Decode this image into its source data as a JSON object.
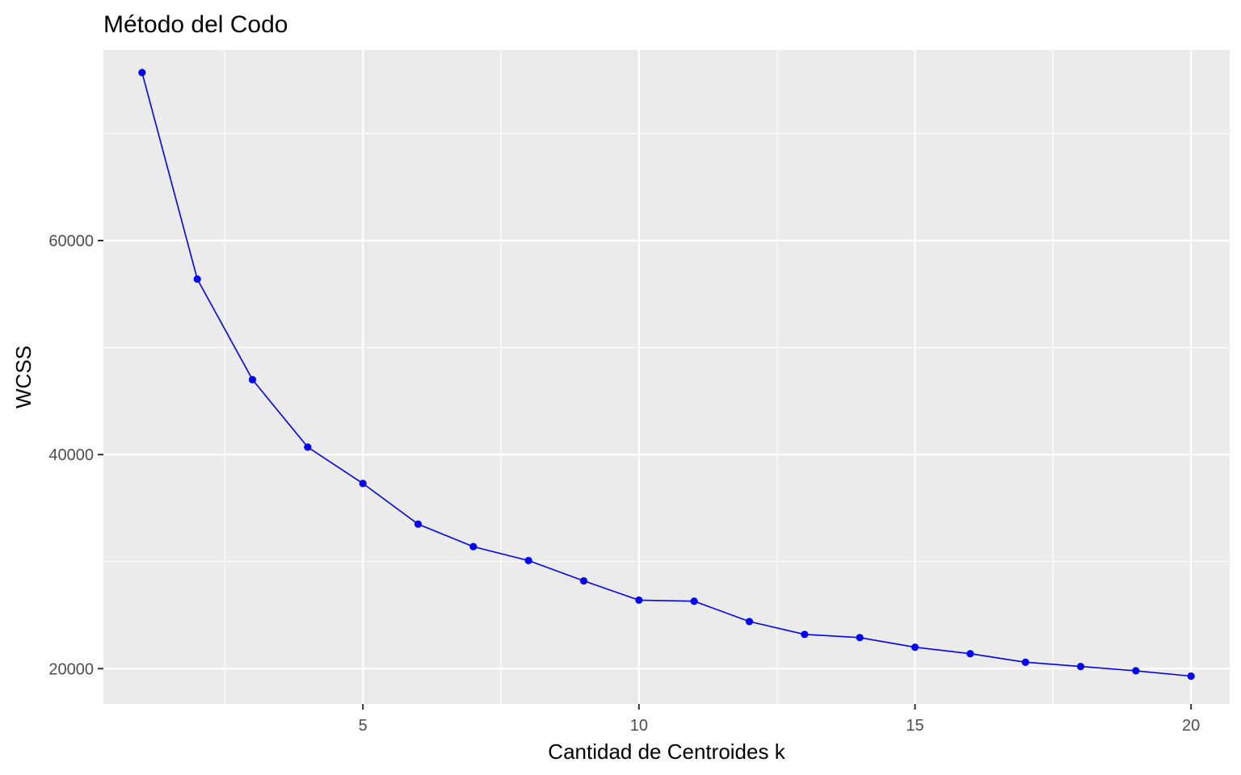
{
  "chart_data": {
    "type": "line",
    "title": "Método del Codo",
    "xlabel": "Cantidad de Centroides k",
    "ylabel": "WCSS",
    "xlim": [
      0.3,
      20.7
    ],
    "ylim": [
      16700,
      77800
    ],
    "x_ticks": [
      5,
      10,
      15,
      20
    ],
    "x_tick_labels": [
      "5",
      "10",
      "15",
      "20"
    ],
    "x_minor_ticks": [
      2.5,
      7.5,
      12.5,
      17.5
    ],
    "y_ticks": [
      20000,
      40000,
      60000
    ],
    "y_tick_labels": [
      "20000",
      "40000",
      "60000"
    ],
    "y_minor_ticks": [
      30000,
      50000,
      70000
    ],
    "grid": true,
    "legend": "none",
    "colors": {
      "panel_background": "#EBEBEB",
      "grid_line": "#FFFFFF",
      "series": "#0000FF"
    },
    "series": [
      {
        "x": [
          1,
          2,
          3,
          4,
          5,
          6,
          7,
          8,
          9,
          10,
          11,
          12,
          13,
          14,
          15,
          16,
          17,
          18,
          19,
          20
        ],
        "values": [
          75700,
          56400,
          47000,
          40700,
          37300,
          33500,
          31400,
          30100,
          28200,
          26400,
          26300,
          24400,
          23200,
          22900,
          22000,
          21400,
          20600,
          20200,
          19800,
          19300
        ]
      }
    ]
  }
}
